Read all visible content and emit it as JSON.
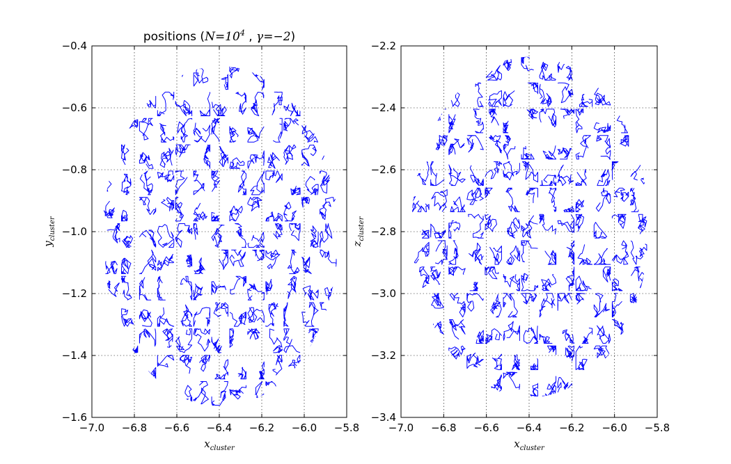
{
  "chart_data": [
    {
      "type": "line",
      "title_prefix": "positions (",
      "title_math_1": "N",
      "title_eq_1": "=10",
      "title_exp": "4",
      "title_sep": " , ",
      "title_math_2": "γ",
      "title_eq_2": "=−2",
      "title_suffix": ")",
      "xlabel": "x",
      "xlabel_sub": "cluster",
      "ylabel": "y",
      "ylabel_sub": "cluster",
      "xlim": [
        -7.0,
        -5.8
      ],
      "ylim": [
        -1.6,
        -0.4
      ],
      "xticks": [
        -7.0,
        -6.8,
        -6.6,
        -6.4,
        -6.2,
        -6.0,
        -5.8
      ],
      "xtick_labels": [
        "−7.0",
        "−6.8",
        "−6.6",
        "−6.4",
        "−6.2",
        "−6.0",
        "−5.8"
      ],
      "yticks": [
        -1.6,
        -1.4,
        -1.2,
        -1.0,
        -0.8,
        -0.6,
        -0.4
      ],
      "ytick_labels": [
        "−1.6",
        "−1.4",
        "−1.2",
        "−1.0",
        "−0.8",
        "−0.6",
        "−0.4"
      ],
      "grid": true,
      "series": [
        {
          "color": "#0000ff",
          "shape": "ellipse",
          "center": [
            -6.395,
            -1.015
          ],
          "semi_axes": [
            0.555,
            0.55
          ]
        }
      ]
    },
    {
      "type": "line",
      "xlabel": "x",
      "xlabel_sub": "cluster",
      "ylabel": "z",
      "ylabel_sub": "cluster",
      "xlim": [
        -7.0,
        -5.8
      ],
      "ylim": [
        -3.4,
        -2.2
      ],
      "xticks": [
        -7.0,
        -6.8,
        -6.6,
        -6.4,
        -6.2,
        -6.0,
        -5.8
      ],
      "xtick_labels": [
        "−7.0",
        "−6.8",
        "−6.6",
        "−6.4",
        "−6.2",
        "−6.0",
        "−5.8"
      ],
      "yticks": [
        -3.4,
        -3.2,
        -3.0,
        -2.8,
        -2.6,
        -2.4,
        -2.2
      ],
      "ytick_labels": [
        "−3.4",
        "−3.2",
        "−3.0",
        "−2.8",
        "−2.6",
        "−2.4",
        "−2.2"
      ],
      "grid": true,
      "series": [
        {
          "color": "#0000ff",
          "shape": "ellipse",
          "center": [
            -6.395,
            -2.785
          ],
          "semi_axes": [
            0.555,
            0.55
          ]
        }
      ]
    }
  ]
}
